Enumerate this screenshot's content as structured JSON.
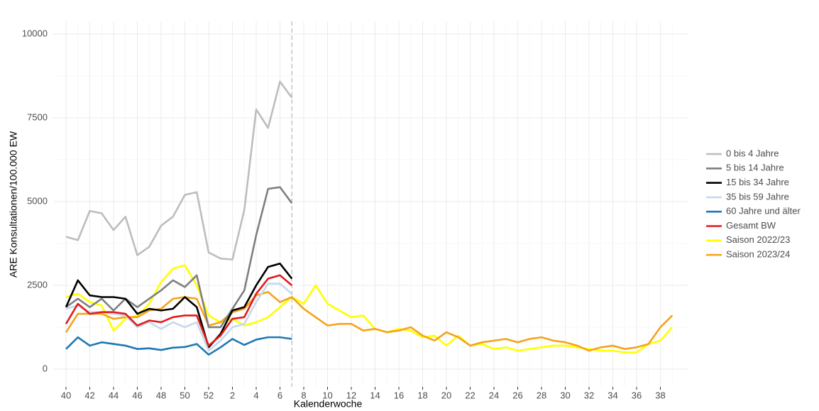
{
  "chart_data": {
    "type": "line",
    "xlabel": "Kalenderwoche",
    "ylabel": "ARE Konsultationen/100.000 EW",
    "categories": [
      "40",
      null,
      "42",
      null,
      "44",
      null,
      "46",
      null,
      "48",
      null,
      "50",
      null,
      "52",
      null,
      "2",
      null,
      "4",
      null,
      "6",
      null,
      "8",
      null,
      "10",
      null,
      "12",
      null,
      "14",
      null,
      "16",
      null,
      "18",
      null,
      "20",
      null,
      "22",
      null,
      "24",
      null,
      "26",
      null,
      "28",
      null,
      "30",
      null,
      "32",
      null,
      "34",
      null,
      "36",
      null,
      "38",
      null
    ],
    "ylim": [
      -530,
      10380
    ],
    "yticks": [
      0,
      2500,
      5000,
      7500,
      10000
    ],
    "grid": true,
    "legend": "right",
    "series": [
      {
        "name": "0 bis 4 Jahre",
        "color": "#bdbdbd",
        "values": [
          3950,
          3850,
          4720,
          4650,
          4150,
          4550,
          3400,
          3650,
          4280,
          4550,
          5200,
          5280,
          3480,
          3300,
          3270,
          4750,
          7750,
          7200,
          8580,
          8100,
          null,
          null,
          null,
          null,
          null,
          null,
          null,
          null,
          null,
          null,
          null,
          null,
          null,
          null,
          null,
          null,
          null,
          null,
          null,
          null,
          null,
          null,
          null,
          null,
          null,
          null,
          null,
          null,
          null,
          null,
          null,
          null
        ]
      },
      {
        "name": "5 bis 14 Jahre",
        "color": "#7f7f7f",
        "values": [
          1850,
          2100,
          1850,
          2100,
          1750,
          2100,
          1850,
          2100,
          2350,
          2650,
          2450,
          2800,
          1250,
          1250,
          1800,
          2350,
          4000,
          5380,
          5430,
          4950,
          null,
          null,
          null,
          null,
          null,
          null,
          null,
          null,
          null,
          null,
          null,
          null,
          null,
          null,
          null,
          null,
          null,
          null,
          null,
          null,
          null,
          null,
          null,
          null,
          null,
          null,
          null,
          null,
          null,
          null,
          null,
          null
        ]
      },
      {
        "name": "15 bis 34 Jahre",
        "color": "#000000",
        "values": [
          1850,
          2650,
          2200,
          2150,
          2150,
          2100,
          1650,
          1800,
          1750,
          1800,
          2150,
          1850,
          650,
          1050,
          1750,
          1850,
          2500,
          3050,
          3150,
          2700,
          null,
          null,
          null,
          null,
          null,
          null,
          null,
          null,
          null,
          null,
          null,
          null,
          null,
          null,
          null,
          null,
          null,
          null,
          null,
          null,
          null,
          null,
          null,
          null,
          null,
          null,
          null,
          null,
          null,
          null,
          null,
          null
        ]
      },
      {
        "name": "35 bis 59 Jahre",
        "color": "#c6d9ec",
        "values": [
          1800,
          1900,
          1700,
          1700,
          1650,
          1600,
          1250,
          1400,
          1200,
          1400,
          1250,
          1400,
          550,
          850,
          1250,
          1350,
          2000,
          2550,
          2550,
          2250,
          null,
          null,
          null,
          null,
          null,
          null,
          null,
          null,
          null,
          null,
          null,
          null,
          null,
          null,
          null,
          null,
          null,
          null,
          null,
          null,
          null,
          null,
          null,
          null,
          null,
          null,
          null,
          null,
          null,
          null,
          null,
          null
        ]
      },
      {
        "name": "60 Jahre und älter",
        "color": "#1f78b4",
        "values": [
          600,
          950,
          700,
          800,
          750,
          700,
          600,
          620,
          570,
          640,
          660,
          750,
          430,
          650,
          900,
          720,
          880,
          950,
          950,
          900,
          null,
          null,
          null,
          null,
          null,
          null,
          null,
          null,
          null,
          null,
          null,
          null,
          null,
          null,
          null,
          null,
          null,
          null,
          null,
          null,
          null,
          null,
          null,
          null,
          null,
          null,
          null,
          null,
          null,
          null,
          null,
          null
        ]
      },
      {
        "name": "Gesamt BW",
        "color": "#e31a1c",
        "values": [
          1350,
          1950,
          1650,
          1700,
          1700,
          1650,
          1300,
          1450,
          1400,
          1550,
          1600,
          1600,
          700,
          1000,
          1500,
          1550,
          2250,
          2700,
          2800,
          2500,
          null,
          null,
          null,
          null,
          null,
          null,
          null,
          null,
          null,
          null,
          null,
          null,
          null,
          null,
          null,
          null,
          null,
          null,
          null,
          null,
          null,
          null,
          null,
          null,
          null,
          null,
          null,
          null,
          null,
          null,
          null,
          null
        ]
      },
      {
        "name": "Saison 2022/23",
        "color": "#ffff00",
        "values": [
          2150,
          2250,
          2000,
          1900,
          1150,
          1500,
          1600,
          1950,
          2600,
          3000,
          3100,
          2500,
          1600,
          1400,
          1500,
          1300,
          1400,
          1550,
          1850,
          2150,
          1950,
          2500,
          1950,
          1750,
          1550,
          1600,
          1200,
          1100,
          1200,
          1150,
          950,
          1000,
          700,
          1000,
          700,
          750,
          600,
          650,
          550,
          600,
          650,
          700,
          700,
          650,
          600,
          550,
          550,
          500,
          500,
          750,
          850,
          1250
        ]
      },
      {
        "name": "Saison 2023/24",
        "color": "#f5a31a",
        "values": [
          1100,
          1650,
          1650,
          1650,
          1500,
          1550,
          1550,
          1750,
          1800,
          2100,
          2150,
          2100,
          1300,
          1400,
          1700,
          1800,
          2200,
          2300,
          2000,
          2150,
          1800,
          1550,
          1300,
          1350,
          1350,
          1150,
          1200,
          1100,
          1150,
          1250,
          1000,
          850,
          1100,
          950,
          700,
          800,
          850,
          900,
          800,
          900,
          950,
          850,
          800,
          700,
          550,
          650,
          700,
          600,
          650,
          750,
          1250,
          1600
        ]
      }
    ]
  }
}
